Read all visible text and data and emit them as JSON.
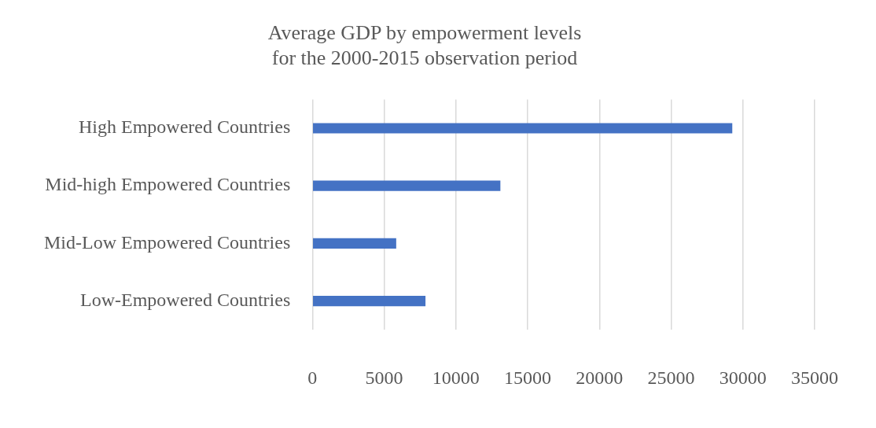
{
  "chart_data": {
    "type": "bar",
    "orientation": "horizontal",
    "title": "Average GDP by empowerment levels for the 2000-2015 observation period",
    "categories": [
      "High Empowered Countries",
      "Mid-high Empowered Countries",
      "Mid-Low Empowered Countries",
      "Low-Empowered Countries"
    ],
    "values": [
      29260,
      13100,
      5840,
      7880
    ],
    "color": "#4472c4",
    "xlim": [
      0,
      35000
    ],
    "xticks": [
      0,
      5000,
      10000,
      15000,
      20000,
      25000,
      30000,
      35000
    ],
    "grid": "x",
    "legend": false
  }
}
